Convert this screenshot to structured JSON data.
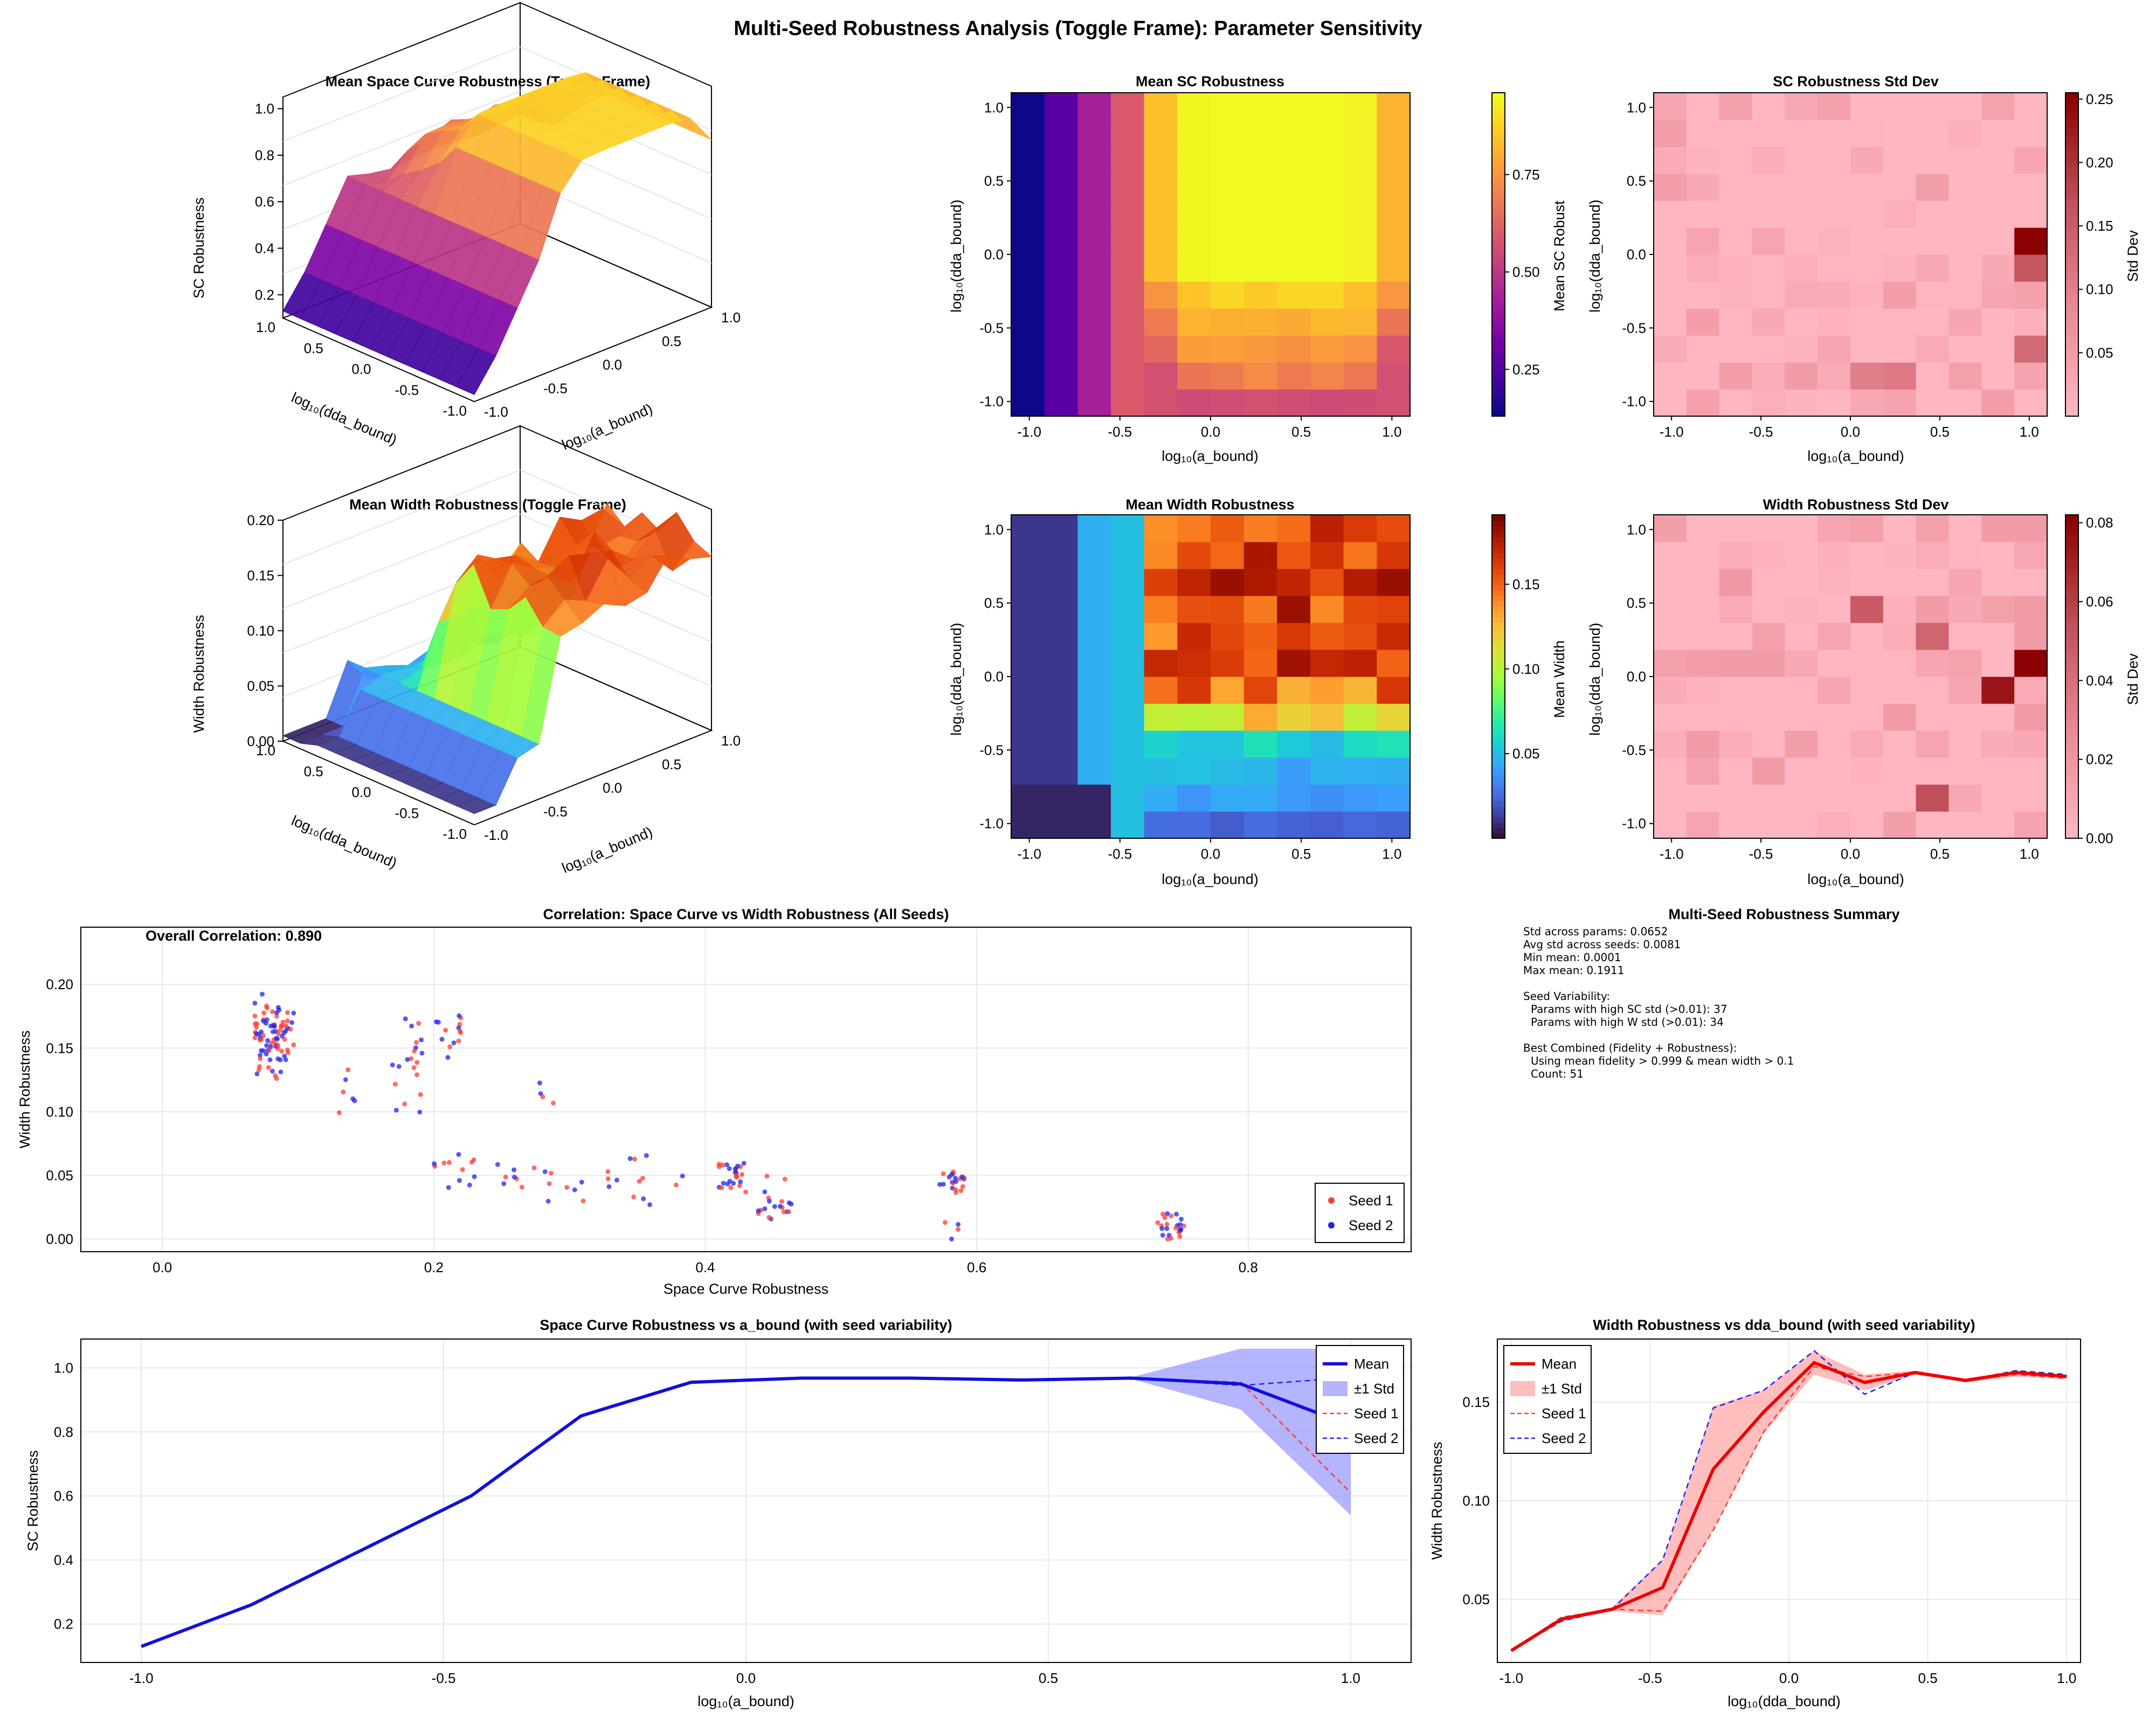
{
  "figure": {
    "title": "Multi-Seed Robustness Analysis (Toggle Frame): Parameter Sensitivity"
  },
  "colors": {
    "seed1": "#ff3b30",
    "seed2": "#2222ee",
    "mean_sc": "#1010dd",
    "mean_w": "#ee0000",
    "band_sc": "#7777ff",
    "band_w": "#ff8888",
    "std_low": "#ffb6c1",
    "std_high": "#8b0000"
  },
  "chart_data": [
    {
      "id": "sc3d",
      "type": "surface",
      "title": "Mean Space Curve Robustness (Toggle Frame)",
      "xlabel": "log₁₀(a_bound)",
      "ylabel": "log₁₀(dda_bound)",
      "zlabel": "SC Robustness",
      "x_ticks": [
        "-1.0",
        "-0.5",
        "0.0",
        "0.5",
        "1.0"
      ],
      "y_ticks": [
        "1.0",
        "0.5",
        "0.0",
        "-0.5",
        "-1.0"
      ],
      "z_ticks": [
        "0.2",
        "0.4",
        "0.6",
        "0.8",
        "1.0"
      ],
      "colormap": "plasma",
      "zlim": [
        0.1,
        1.05
      ]
    },
    {
      "id": "sc_heat",
      "type": "heatmap",
      "title": "Mean SC Robustness",
      "xlabel": "log₁₀(a_bound)",
      "ylabel": "log₁₀(dda_bound)",
      "colorbar_label": "Mean SC Robust",
      "colormap": "plasma",
      "x_ticks": [
        "-1.0",
        "-0.5",
        "0.0",
        "0.5",
        "1.0"
      ],
      "y_ticks": [
        "-1.0",
        "-0.5",
        "0.0",
        "0.5",
        "1.0"
      ],
      "colorbar_ticks": [
        "0.25",
        "0.50",
        "0.75"
      ],
      "clim": [
        0.13,
        0.96
      ]
    },
    {
      "id": "sc_std",
      "type": "heatmap",
      "title": "SC Robustness Std Dev",
      "xlabel": "log₁₀(a_bound)",
      "ylabel": "log₁₀(dda_bound)",
      "colorbar_label": "Std Dev",
      "x_ticks": [
        "-1.0",
        "-0.5",
        "0.0",
        "0.5",
        "1.0"
      ],
      "y_ticks": [
        "-1.0",
        "-0.5",
        "0.0",
        "0.5",
        "1.0"
      ],
      "colorbar_ticks": [
        "0.05",
        "0.10",
        "0.15",
        "0.20",
        "0.25"
      ],
      "clim": [
        0.0,
        0.255
      ]
    },
    {
      "id": "w3d",
      "type": "surface",
      "title": "Mean Width Robustness (Toggle Frame)",
      "xlabel": "log₁₀(a_bound)",
      "ylabel": "log₁₀(dda_bound)",
      "zlabel": "Width Robustness",
      "x_ticks": [
        "-1.0",
        "-0.5",
        "0.0",
        "0.5",
        "1.0"
      ],
      "y_ticks": [
        "1.0",
        "0.5",
        "0.0",
        "-0.5",
        "-1.0"
      ],
      "z_ticks": [
        "0.00",
        "0.05",
        "0.10",
        "0.15",
        "0.20"
      ],
      "colormap": "turbo",
      "zlim": [
        0.0,
        0.2
      ]
    },
    {
      "id": "w_heat",
      "type": "heatmap",
      "title": "Mean Width Robustness",
      "xlabel": "log₁₀(a_bound)",
      "ylabel": "log₁₀(dda_bound)",
      "colorbar_label": "Mean Width",
      "colormap": "turbo",
      "x_ticks": [
        "-1.0",
        "-0.5",
        "0.0",
        "0.5",
        "1.0"
      ],
      "y_ticks": [
        "-1.0",
        "-0.5",
        "0.0",
        "0.5",
        "1.0"
      ],
      "colorbar_ticks": [
        "0.05",
        "0.10",
        "0.15"
      ],
      "clim": [
        0.0,
        0.191
      ]
    },
    {
      "id": "w_std",
      "type": "heatmap",
      "title": "Width Robustness Std Dev",
      "xlabel": "log₁₀(a_bound)",
      "ylabel": "log₁₀(dda_bound)",
      "colorbar_label": "Std Dev",
      "x_ticks": [
        "-1.0",
        "-0.5",
        "0.0",
        "0.5",
        "1.0"
      ],
      "y_ticks": [
        "-1.0",
        "-0.5",
        "0.0",
        "0.5",
        "1.0"
      ],
      "colorbar_ticks": [
        "0.00",
        "0.02",
        "0.04",
        "0.06",
        "0.08"
      ],
      "clim": [
        0.0,
        0.082
      ]
    },
    {
      "id": "corr",
      "type": "scatter",
      "title": "Correlation: Space Curve vs Width Robustness (All Seeds)",
      "xlabel": "Space Curve Robustness",
      "ylabel": "Width Robustness",
      "annotation": "Overall Correlation: 0.890",
      "x_ticks": [
        "0.0",
        "0.2",
        "0.4",
        "0.6",
        "0.8"
      ],
      "y_ticks": [
        "0.00",
        "0.05",
        "0.10",
        "0.15",
        "0.20"
      ],
      "xlim": [
        -0.06,
        0.92
      ],
      "ylim": [
        -0.01,
        0.245
      ],
      "legend": [
        "Seed 1",
        "Seed 2"
      ],
      "legend_position": "bottom-right"
    },
    {
      "id": "sc_line",
      "type": "line",
      "title": "Space Curve Robustness vs a_bound (with seed variability)",
      "xlabel": "log₁₀(a_bound)",
      "ylabel": "SC Robustness",
      "x_ticks": [
        "-1.0",
        "-0.5",
        "0.0",
        "0.5",
        "1.0"
      ],
      "y_ticks": [
        "0.2",
        "0.4",
        "0.6",
        "0.8",
        "1.0"
      ],
      "xlim": [
        -1.1,
        1.1
      ],
      "ylim": [
        0.08,
        1.09
      ],
      "x": [
        -1.0,
        -0.8182,
        -0.6364,
        -0.4545,
        -0.2727,
        -0.0909,
        0.0909,
        0.2727,
        0.4545,
        0.6364,
        0.8182,
        1.0
      ],
      "mean": [
        0.13,
        0.26,
        0.43,
        0.6,
        0.85,
        0.955,
        0.968,
        0.968,
        0.962,
        0.968,
        0.95,
        0.82
      ],
      "seed1": [
        0.13,
        0.26,
        0.43,
        0.6,
        0.85,
        0.958,
        0.968,
        0.968,
        0.962,
        0.968,
        0.955,
        0.61
      ],
      "seed2": [
        0.13,
        0.26,
        0.43,
        0.6,
        0.85,
        0.952,
        0.968,
        0.968,
        0.962,
        0.968,
        0.945,
        0.97
      ],
      "std_upper": [
        0.13,
        0.26,
        0.43,
        0.6,
        0.85,
        0.958,
        0.97,
        0.97,
        0.964,
        0.97,
        1.06,
        1.06
      ],
      "std_lower": [
        0.13,
        0.26,
        0.43,
        0.6,
        0.85,
        0.952,
        0.966,
        0.966,
        0.96,
        0.966,
        0.87,
        0.54
      ],
      "legend": [
        "Mean",
        "±1 Std",
        "Seed 1",
        "Seed 2"
      ],
      "legend_position": "top-right"
    },
    {
      "id": "w_line",
      "type": "line",
      "title": "Width Robustness vs dda_bound (with seed variability)",
      "xlabel": "log₁₀(dda_bound)",
      "ylabel": "Width Robustness",
      "x_ticks": [
        "-1.0",
        "-0.5",
        "0.0",
        "0.5",
        "1.0"
      ],
      "y_ticks": [
        "0.05",
        "0.10",
        "0.15"
      ],
      "xlim": [
        -1.05,
        1.05
      ],
      "ylim": [
        0.018,
        0.182
      ],
      "x": [
        -1.0,
        -0.8182,
        -0.6364,
        -0.4545,
        -0.2727,
        -0.0909,
        0.0909,
        0.2727,
        0.4545,
        0.6364,
        0.8182,
        1.0
      ],
      "mean": [
        0.024,
        0.04,
        0.045,
        0.056,
        0.116,
        0.145,
        0.17,
        0.16,
        0.165,
        0.161,
        0.165,
        0.163
      ],
      "seed1": [
        0.024,
        0.041,
        0.045,
        0.044,
        0.085,
        0.135,
        0.168,
        0.163,
        0.165,
        0.161,
        0.164,
        0.162
      ],
      "seed2": [
        0.024,
        0.039,
        0.045,
        0.07,
        0.147,
        0.156,
        0.176,
        0.154,
        0.165,
        0.161,
        0.166,
        0.164
      ],
      "std_upper": [
        0.024,
        0.041,
        0.046,
        0.07,
        0.148,
        0.156,
        0.176,
        0.164,
        0.166,
        0.162,
        0.166,
        0.164
      ],
      "std_lower": [
        0.024,
        0.039,
        0.044,
        0.042,
        0.085,
        0.134,
        0.164,
        0.156,
        0.164,
        0.16,
        0.163,
        0.162
      ],
      "legend": [
        "Mean",
        "±1 Std",
        "Seed 1",
        "Seed 2"
      ],
      "legend_position": "top-left"
    }
  ],
  "summary": {
    "title": "Multi-Seed Robustness Summary",
    "lines": [
      "Std across params: 0.0652",
      "Avg std across seeds: 0.0081",
      "Min mean: 0.0001",
      "Max mean: 0.1911",
      "",
      "Seed Variability:",
      "  Params with high SC std (>0.01): 37",
      "  Params with high W std (>0.01): 34",
      "",
      "Best Combined (Fidelity + Robustness):",
      "  Using mean fidelity > 0.999 & mean width > 0.1",
      "  Count: 51"
    ]
  }
}
